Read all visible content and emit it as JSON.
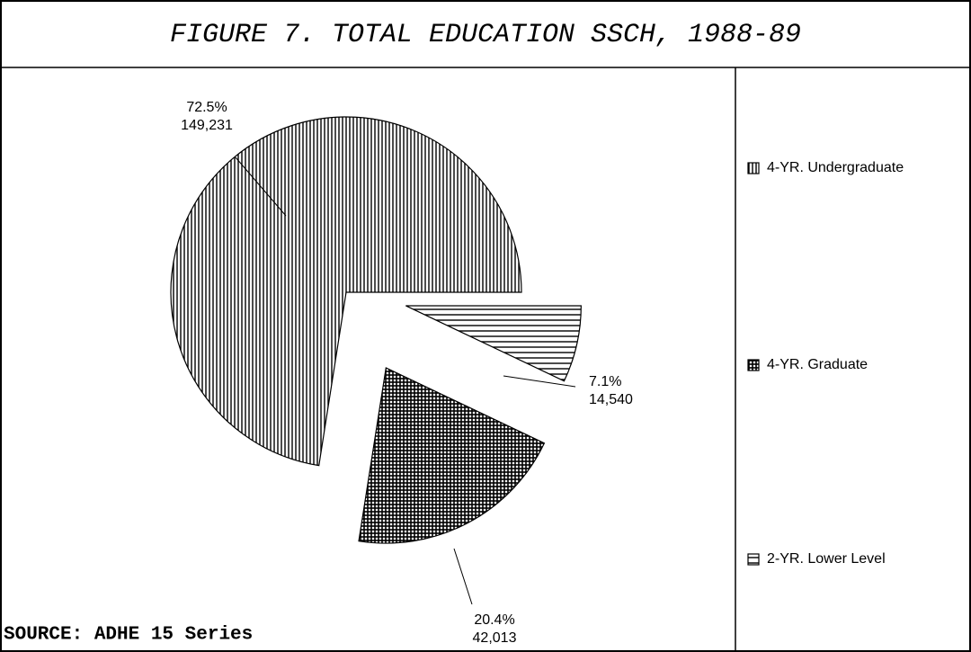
{
  "chart_data": {
    "type": "pie",
    "title": "FIGURE 7.  TOTAL EDUCATION SSCH, 1988-89",
    "source": "SOURCE:   ADHE 15 Series",
    "categories": [
      "4-YR. Undergraduate",
      "4-YR. Graduate",
      "2-YR. Lower Level"
    ],
    "values": [
      149231,
      42013,
      14540
    ],
    "value_labels": [
      "149,231",
      "42,013",
      "14,540"
    ],
    "percents": [
      72.5,
      20.4,
      7.1
    ],
    "percent_labels": [
      "72.5%",
      "20.4%",
      "7.1%"
    ],
    "legend": "right"
  }
}
